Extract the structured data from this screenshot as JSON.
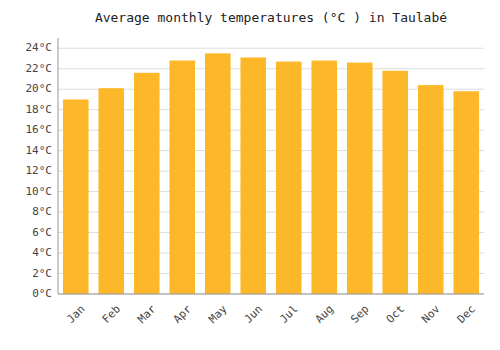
{
  "chart_data": {
    "type": "bar",
    "title": "Average monthly temperatures (°C ) in Taulabé",
    "categories": [
      "Jan",
      "Feb",
      "Mar",
      "Apr",
      "May",
      "Jun",
      "Jul",
      "Aug",
      "Sep",
      "Oct",
      "Nov",
      "Dec"
    ],
    "values": [
      19.0,
      20.1,
      21.6,
      22.8,
      23.5,
      23.1,
      22.7,
      22.8,
      22.6,
      21.8,
      20.4,
      19.8
    ],
    "color": "#FDB829",
    "ylim": [
      0,
      25
    ],
    "yticks": [
      {
        "value": 0,
        "label": "0°C"
      },
      {
        "value": 2,
        "label": "2°C"
      },
      {
        "value": 4,
        "label": "4°C"
      },
      {
        "value": 6,
        "label": "6°C"
      },
      {
        "value": 8,
        "label": "8°C"
      },
      {
        "value": 10,
        "label": "10°C"
      },
      {
        "value": 12,
        "label": "12°C"
      },
      {
        "value": 14,
        "label": "14°C"
      },
      {
        "value": 16,
        "label": "16°C"
      },
      {
        "value": 18,
        "label": "18°C"
      },
      {
        "value": 20,
        "label": "20°C"
      },
      {
        "value": 22,
        "label": "22°C"
      },
      {
        "value": 24,
        "label": "24°C"
      }
    ],
    "grid": true
  }
}
